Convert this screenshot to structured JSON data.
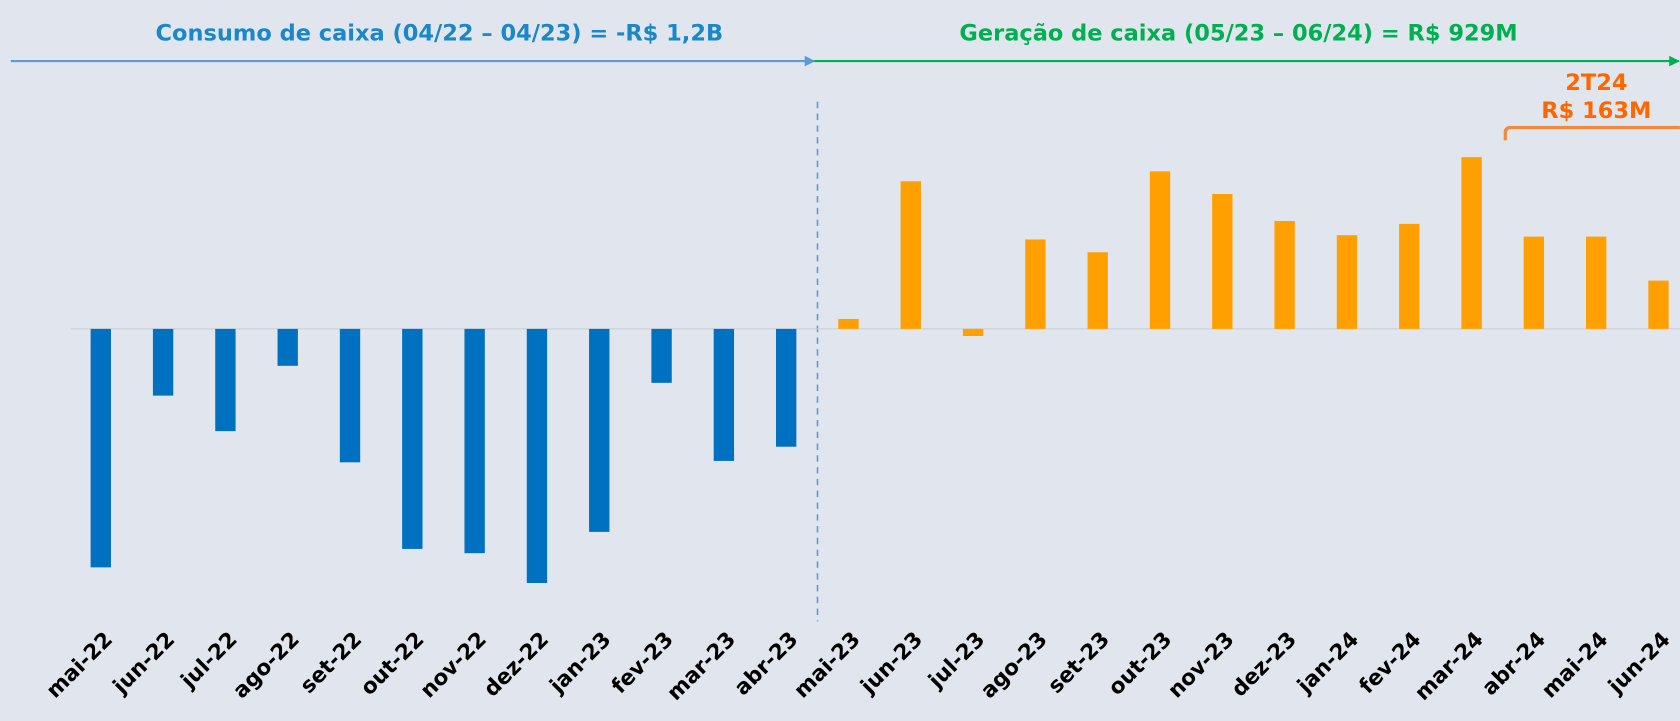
{
  "chart_data": {
    "type": "bar",
    "annotations": [
      "Consumo de caixa (04/22 – 04/23) = -R$ 1,2B",
      "Geração de caixa (05/23 – 06/24) = R$ 929M",
      "2T24",
      "R$ 163M"
    ],
    "categories": [
      "mai-22",
      "jun-22",
      "jul-22",
      "ago-22",
      "set-22",
      "out-22",
      "nov-22",
      "dez-22",
      "jan-23",
      "fev-23",
      "mar-23",
      "abr-23",
      "mai-23",
      "jun-23",
      "jul-23",
      "ago-23",
      "set-23",
      "out-23",
      "nov-23",
      "dez-23",
      "jan-24",
      "fev-24",
      "mar-24",
      "abr-24",
      "mai-24",
      "jun-24"
    ],
    "values": [
      -168,
      -47,
      -72,
      -26,
      -94,
      -155,
      -158,
      -179,
      -143,
      -38,
      -93,
      -83,
      7,
      104,
      -5,
      63,
      54,
      111,
      95,
      76,
      66,
      74,
      121,
      65,
      65,
      34
    ],
    "colors": [
      "#0070c0",
      "#0070c0",
      "#0070c0",
      "#0070c0",
      "#0070c0",
      "#0070c0",
      "#0070c0",
      "#0070c0",
      "#0070c0",
      "#0070c0",
      "#0070c0",
      "#0070c0",
      "#ffa000",
      "#ffa000",
      "#ffa000",
      "#ffa000",
      "#ffa000",
      "#ffa000",
      "#ffa000",
      "#ffa000",
      "#ffa000",
      "#ffa000",
      "#ffa000",
      "#ffa000",
      "#ffa000",
      "#ffa000"
    ],
    "ylim": [
      -200,
      160
    ]
  }
}
